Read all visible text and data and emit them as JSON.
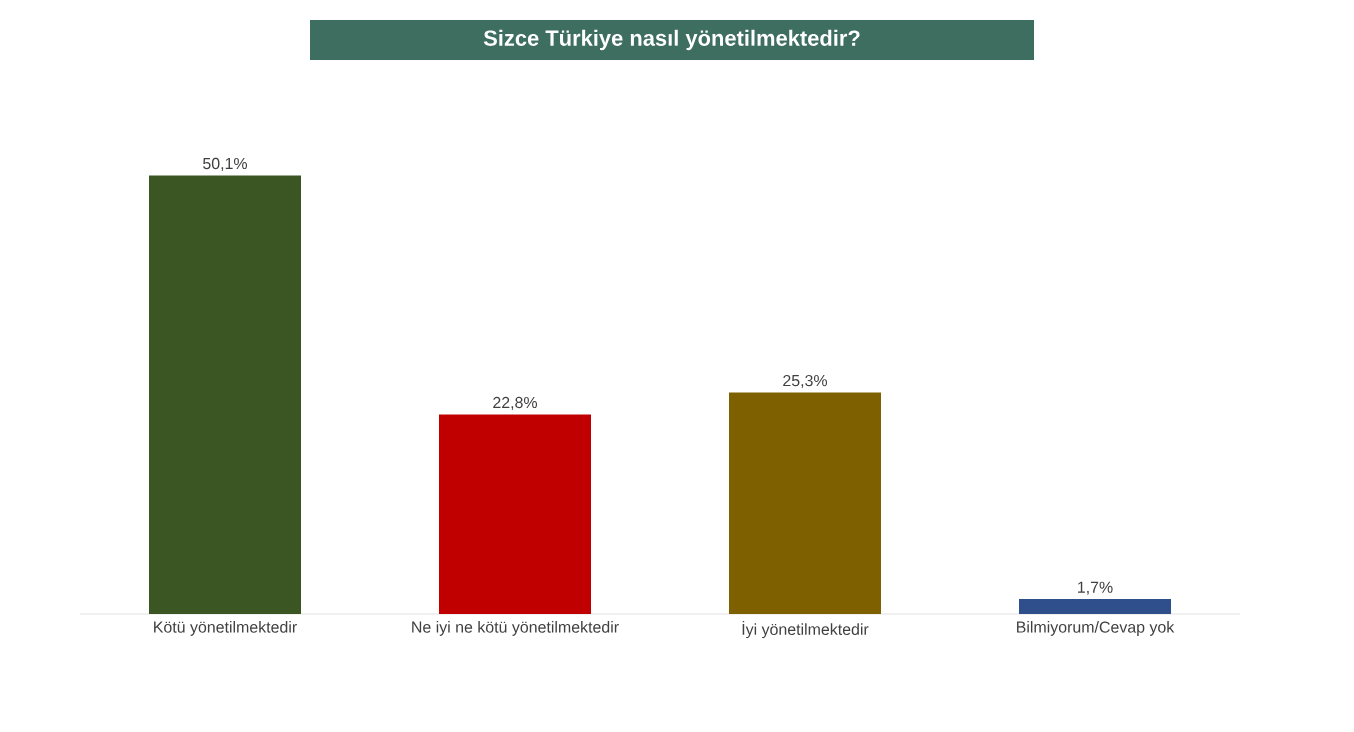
{
  "chart_data": {
    "type": "bar",
    "title": "Sizce Türkiye nasıl yönetilmektedir?",
    "categories": [
      "Kötü yönetilmektedir",
      "Ne iyi ne kötü yönetilmektedir",
      "İyi yönetilmektedir",
      "Bilmiyorum/Cevap yok"
    ],
    "values": [
      50.1,
      22.8,
      25.3,
      1.7
    ],
    "colors": [
      "#3b5622",
      "#c00000",
      "#7f6000",
      "#2e4e8c"
    ],
    "value_labels": [
      "50,1%",
      "22,8%",
      "25,3%",
      "1,7%"
    ]
  }
}
